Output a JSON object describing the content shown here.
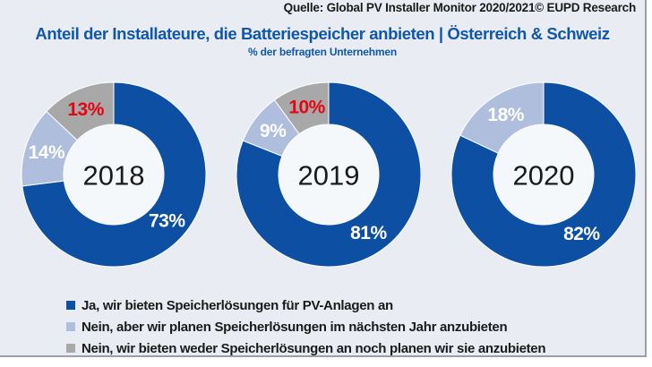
{
  "source": "Quelle: Global PV Installer Monitor 2020/2021© EUPD Research",
  "title": "Anteil der Installateure, die Batteriespeicher anbieten | Österreich & Schweiz",
  "subtitle": "% der befragten Unternehmen",
  "colors": {
    "background": "#e9edf3",
    "frame_border": "#999fa8",
    "title_text": "#1057a5",
    "body_text": "#1a1a1a",
    "segment_yes": "#0d50a3",
    "segment_plan": "#afbedd",
    "segment_no": "#a9a8a8",
    "donut_hole": "#f5f8fb",
    "label_white": "#ffffff",
    "label_red": "#e30613",
    "slice_divider": "#ffffff"
  },
  "chart_data": {
    "type": "pie",
    "variant": "donut",
    "title": "Anteil der Installateure, die Batteriespeicher anbieten | Österreich & Schweiz",
    "subtitle": "% der befragten Unternehmen",
    "source": "Quelle: Global PV Installer Monitor 2020/2021© EUPD Research",
    "unit": "%",
    "legend_position": "bottom",
    "segment_colors": [
      "#0d50a3",
      "#afbedd",
      "#a9a8a8"
    ],
    "legend": [
      {
        "label": "Ja, wir bieten Speicherlösungen für PV-Anlagen an",
        "color": "#0d50a3"
      },
      {
        "label": "Nein, aber wir planen Speicherlösungen im nächsten Jahr anzubieten",
        "color": "#afbedd"
      },
      {
        "label": "Nein, wir bieten weder Speicherlösungen an noch planen wir sie anzubieten",
        "color": "#a9a8a8"
      }
    ],
    "donuts": [
      {
        "year": "2018",
        "values": [
          73,
          14,
          13
        ],
        "labels": [
          "73%",
          "14%",
          "13%"
        ],
        "label_colors": [
          "#ffffff",
          "#ffffff",
          "#e30613"
        ]
      },
      {
        "year": "2019",
        "values": [
          81,
          9,
          10
        ],
        "labels": [
          "81%",
          "9%",
          "10%"
        ],
        "label_colors": [
          "#ffffff",
          "#ffffff",
          "#e30613"
        ]
      },
      {
        "year": "2020",
        "values": [
          82,
          18
        ],
        "labels": [
          "82%",
          "18%"
        ],
        "label_colors": [
          "#ffffff",
          "#ffffff"
        ]
      }
    ]
  }
}
